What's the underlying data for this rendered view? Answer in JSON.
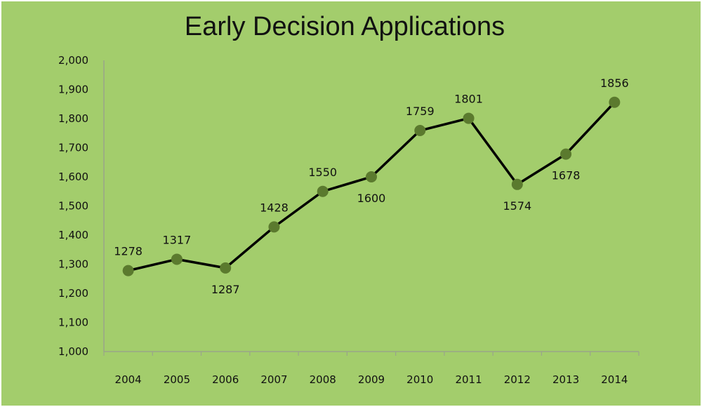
{
  "chart_data": {
    "type": "line",
    "title": "Early Decision Applications",
    "xlabel": "",
    "ylabel": "",
    "categories": [
      "2004",
      "2005",
      "2006",
      "2007",
      "2008",
      "2009",
      "2010",
      "2011",
      "2012",
      "2013",
      "2014"
    ],
    "series": [
      {
        "values": [
          1278,
          1317,
          1287,
          1428,
          1550,
          1600,
          1759,
          1801,
          1574,
          1678,
          1856
        ],
        "data_labels": [
          "1278",
          "1317",
          "1287",
          "1428",
          "1550",
          "1600",
          "1759",
          "1801",
          "1574",
          "1678",
          "1856"
        ]
      }
    ],
    "ylim": [
      1000,
      2000
    ],
    "y_ticks": [
      1000,
      1100,
      1200,
      1300,
      1400,
      1500,
      1600,
      1700,
      1800,
      1900,
      2000
    ],
    "y_tick_labels": [
      "1,000",
      "1,100",
      "1,200",
      "1,300",
      "1,400",
      "1,500",
      "1,600",
      "1,700",
      "1,800",
      "1,900",
      "2,000"
    ],
    "grid": false,
    "legend": "none",
    "colors": {
      "background": "#a3cd6c",
      "line": "#000000",
      "marker": "#5b7a2e",
      "axis": "#9aa58a",
      "text": "#111111",
      "border": "#ffffff"
    }
  }
}
